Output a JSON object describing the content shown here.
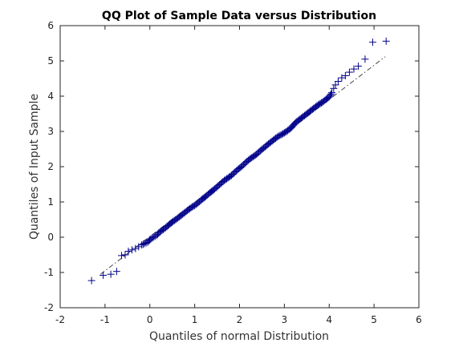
{
  "chart_data": {
    "type": "scatter",
    "title": "QQ Plot of Sample Data versus Distribution",
    "xlabel": "Quantiles of normal Distribution",
    "ylabel": "Quantiles of Input Sample",
    "xlim": [
      -2,
      6
    ],
    "ylim": [
      -2,
      6
    ],
    "xticks": [
      -2,
      -1,
      0,
      1,
      2,
      3,
      4,
      5,
      6
    ],
    "yticks": [
      -2,
      -1,
      0,
      1,
      2,
      3,
      4,
      5,
      6
    ],
    "grid": false,
    "legend": "none",
    "marker": "+",
    "marker_color": "#00008b",
    "reference_line": {
      "from": [
        -1.1,
        -1.05
      ],
      "to": [
        5.25,
        5.12
      ],
      "color": "#444444",
      "style": "dash-dot"
    },
    "series": [
      {
        "points": [
          [
            -1.3,
            -1.23
          ],
          [
            -1.04,
            -1.08
          ],
          [
            -0.87,
            -1.05
          ],
          [
            -0.74,
            -0.97
          ],
          [
            -0.63,
            -0.52
          ],
          [
            -0.55,
            -0.5
          ],
          [
            -0.48,
            -0.4
          ],
          [
            -0.4,
            -0.36
          ],
          [
            -0.32,
            -0.32
          ],
          [
            -0.25,
            -0.27
          ],
          [
            -0.18,
            -0.22
          ],
          [
            -0.12,
            -0.18
          ],
          [
            -0.05,
            -0.14
          ],
          [
            0.02,
            -0.05
          ],
          [
            0.08,
            0.0
          ],
          [
            0.15,
            0.05
          ],
          [
            0.22,
            0.15
          ],
          [
            0.3,
            0.22
          ],
          [
            0.38,
            0.3
          ],
          [
            0.45,
            0.38
          ],
          [
            0.52,
            0.45
          ],
          [
            0.6,
            0.52
          ],
          [
            0.68,
            0.6
          ],
          [
            0.76,
            0.68
          ],
          [
            0.84,
            0.76
          ],
          [
            0.92,
            0.84
          ],
          [
            1.0,
            0.9
          ],
          [
            1.08,
            0.98
          ],
          [
            1.16,
            1.07
          ],
          [
            1.25,
            1.16
          ],
          [
            1.33,
            1.25
          ],
          [
            1.42,
            1.34
          ],
          [
            1.5,
            1.43
          ],
          [
            1.58,
            1.52
          ],
          [
            1.66,
            1.61
          ],
          [
            1.74,
            1.68
          ],
          [
            1.82,
            1.75
          ],
          [
            1.9,
            1.85
          ],
          [
            1.98,
            1.94
          ],
          [
            2.06,
            2.02
          ],
          [
            2.14,
            2.12
          ],
          [
            2.22,
            2.21
          ],
          [
            2.3,
            2.28
          ],
          [
            2.38,
            2.35
          ],
          [
            2.46,
            2.45
          ],
          [
            2.54,
            2.53
          ],
          [
            2.62,
            2.62
          ],
          [
            2.7,
            2.7
          ],
          [
            2.78,
            2.78
          ],
          [
            2.86,
            2.86
          ],
          [
            2.95,
            2.92
          ],
          [
            3.05,
            3.0
          ],
          [
            3.15,
            3.1
          ],
          [
            3.25,
            3.25
          ],
          [
            3.35,
            3.35
          ],
          [
            3.45,
            3.45
          ],
          [
            3.55,
            3.55
          ],
          [
            3.65,
            3.65
          ],
          [
            3.75,
            3.75
          ],
          [
            3.85,
            3.83
          ],
          [
            3.93,
            3.91
          ],
          [
            4.0,
            3.98
          ],
          [
            4.06,
            4.1
          ],
          [
            4.1,
            4.22
          ],
          [
            4.14,
            4.32
          ],
          [
            4.2,
            4.42
          ],
          [
            4.28,
            4.52
          ],
          [
            4.36,
            4.58
          ],
          [
            4.45,
            4.68
          ],
          [
            4.55,
            4.77
          ],
          [
            4.65,
            4.85
          ],
          [
            4.8,
            5.05
          ],
          [
            4.97,
            5.53
          ],
          [
            5.27,
            5.56
          ]
        ]
      }
    ]
  }
}
